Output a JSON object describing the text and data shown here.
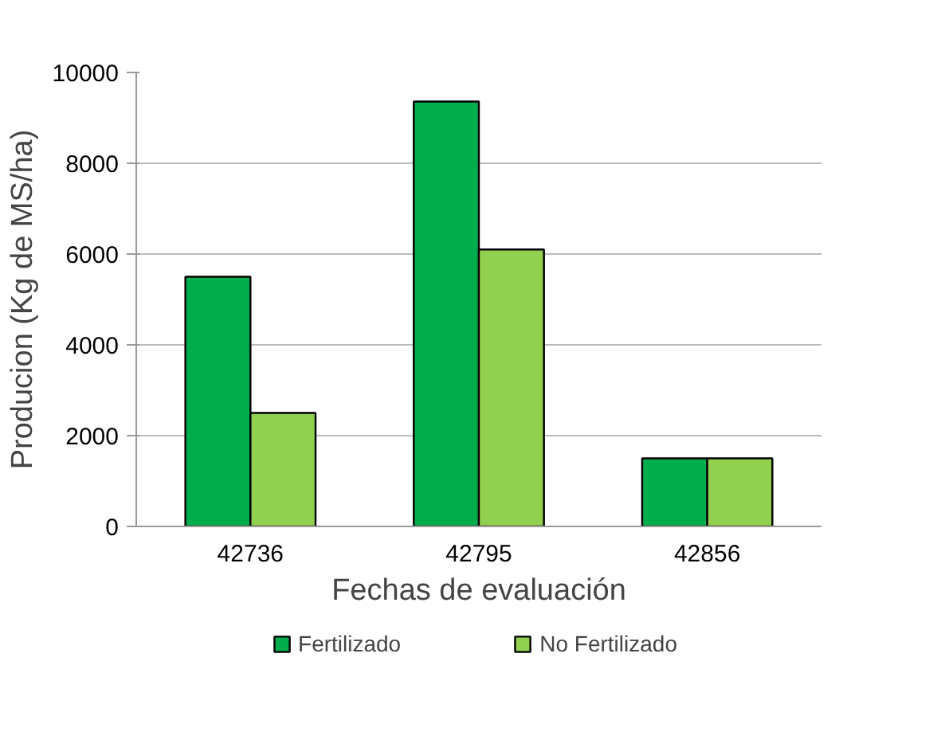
{
  "chart_data": {
    "type": "bar",
    "xlabel": "Fechas de evaluación",
    "ylabel": "Producion (Kg de MS/ha)",
    "categories": [
      "42736",
      "42795",
      "42856"
    ],
    "series": [
      {
        "name": "Fertilizado",
        "color": "#00ad4c",
        "values": [
          5500,
          9360,
          1500
        ]
      },
      {
        "name": "No Fertilizado",
        "color": "#92d050",
        "values": [
          2500,
          6100,
          1500
        ]
      }
    ],
    "ylim": [
      0,
      10000
    ],
    "yticks": [
      0,
      2000,
      4000,
      6000,
      8000,
      10000
    ],
    "grid": "y",
    "legend": "bottom"
  }
}
